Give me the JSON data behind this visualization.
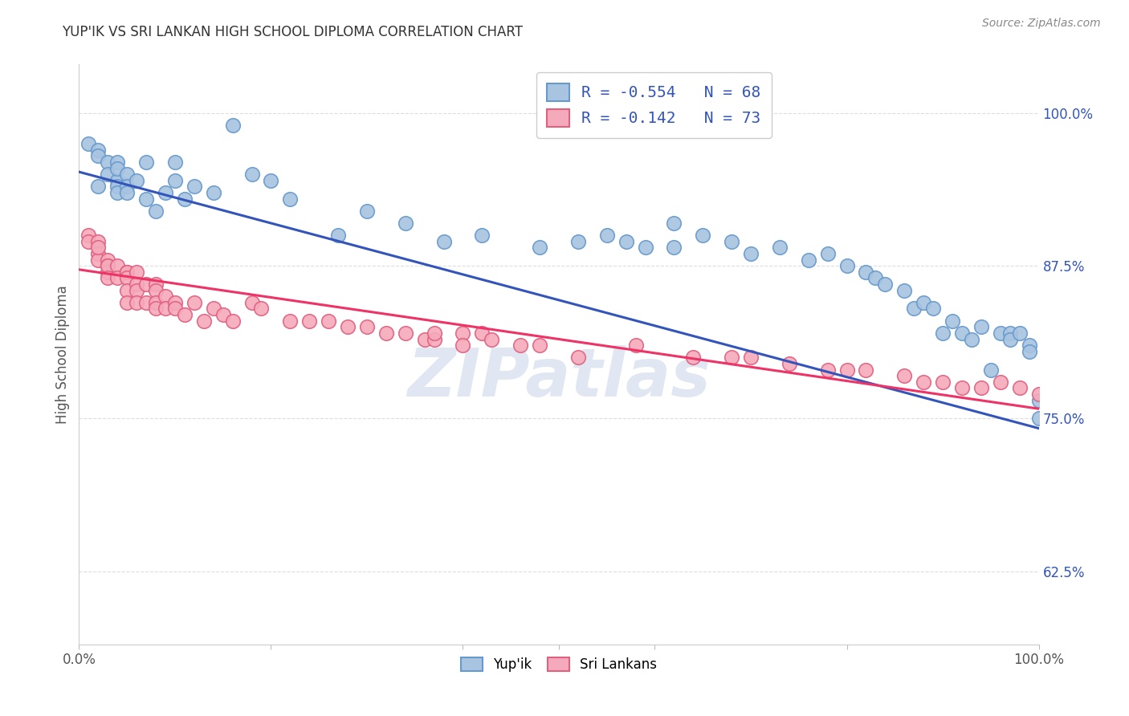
{
  "title": "YUP'IK VS SRI LANKAN HIGH SCHOOL DIPLOMA CORRELATION CHART",
  "source": "Source: ZipAtlas.com",
  "ylabel": "High School Diploma",
  "ytick_labels": [
    "62.5%",
    "75.0%",
    "87.5%",
    "100.0%"
  ],
  "ytick_values": [
    0.625,
    0.75,
    0.875,
    1.0
  ],
  "xlim": [
    0.0,
    1.0
  ],
  "ylim": [
    0.565,
    1.04
  ],
  "blue_color": "#A8C4E0",
  "blue_edge": "#6699CC",
  "pink_color": "#F5AABB",
  "pink_edge": "#E06080",
  "trendline_blue": "#3355BB",
  "trendline_pink": "#EE3366",
  "watermark": "ZIPatlas",
  "blue_R": -0.554,
  "blue_N": 68,
  "pink_R": -0.142,
  "pink_N": 73,
  "blue_trend_y_start": 0.952,
  "blue_trend_y_end": 0.742,
  "pink_trend_y_start": 0.872,
  "pink_trend_y_end": 0.758,
  "background_color": "#FFFFFF",
  "grid_color": "#DDDDDD",
  "blue_scatter_x": [
    0.01,
    0.02,
    0.02,
    0.02,
    0.03,
    0.03,
    0.04,
    0.04,
    0.04,
    0.04,
    0.04,
    0.05,
    0.05,
    0.05,
    0.06,
    0.07,
    0.07,
    0.08,
    0.09,
    0.1,
    0.1,
    0.11,
    0.12,
    0.14,
    0.16,
    0.18,
    0.2,
    0.22,
    0.27,
    0.3,
    0.34,
    0.38,
    0.42,
    0.48,
    0.52,
    0.55,
    0.57,
    0.59,
    0.62,
    0.62,
    0.65,
    0.68,
    0.7,
    0.73,
    0.76,
    0.78,
    0.8,
    0.82,
    0.83,
    0.84,
    0.86,
    0.87,
    0.88,
    0.89,
    0.9,
    0.91,
    0.92,
    0.93,
    0.94,
    0.95,
    0.96,
    0.97,
    0.97,
    0.98,
    0.99,
    0.99,
    1.0,
    1.0
  ],
  "blue_scatter_y": [
    0.975,
    0.97,
    0.965,
    0.94,
    0.96,
    0.95,
    0.945,
    0.96,
    0.955,
    0.94,
    0.935,
    0.95,
    0.94,
    0.935,
    0.945,
    0.96,
    0.93,
    0.92,
    0.935,
    0.945,
    0.96,
    0.93,
    0.94,
    0.935,
    0.99,
    0.95,
    0.945,
    0.93,
    0.9,
    0.92,
    0.91,
    0.895,
    0.9,
    0.89,
    0.895,
    0.9,
    0.895,
    0.89,
    0.89,
    0.91,
    0.9,
    0.895,
    0.885,
    0.89,
    0.88,
    0.885,
    0.875,
    0.87,
    0.865,
    0.86,
    0.855,
    0.84,
    0.845,
    0.84,
    0.82,
    0.83,
    0.82,
    0.815,
    0.825,
    0.79,
    0.82,
    0.82,
    0.815,
    0.82,
    0.81,
    0.805,
    0.75,
    0.765
  ],
  "pink_scatter_x": [
    0.01,
    0.01,
    0.02,
    0.02,
    0.02,
    0.02,
    0.03,
    0.03,
    0.03,
    0.03,
    0.03,
    0.04,
    0.04,
    0.05,
    0.05,
    0.05,
    0.05,
    0.05,
    0.06,
    0.06,
    0.06,
    0.06,
    0.07,
    0.07,
    0.08,
    0.08,
    0.08,
    0.08,
    0.09,
    0.09,
    0.1,
    0.1,
    0.11,
    0.12,
    0.13,
    0.14,
    0.15,
    0.16,
    0.18,
    0.19,
    0.22,
    0.24,
    0.26,
    0.28,
    0.3,
    0.32,
    0.34,
    0.36,
    0.37,
    0.37,
    0.4,
    0.4,
    0.42,
    0.43,
    0.46,
    0.48,
    0.52,
    0.58,
    0.64,
    0.68,
    0.7,
    0.74,
    0.78,
    0.8,
    0.82,
    0.86,
    0.88,
    0.9,
    0.92,
    0.94,
    0.96,
    0.98,
    1.0
  ],
  "pink_scatter_y": [
    0.9,
    0.895,
    0.895,
    0.885,
    0.88,
    0.89,
    0.88,
    0.875,
    0.87,
    0.875,
    0.865,
    0.875,
    0.865,
    0.87,
    0.87,
    0.865,
    0.855,
    0.845,
    0.87,
    0.86,
    0.855,
    0.845,
    0.86,
    0.845,
    0.86,
    0.855,
    0.845,
    0.84,
    0.85,
    0.84,
    0.845,
    0.84,
    0.835,
    0.845,
    0.83,
    0.84,
    0.835,
    0.83,
    0.845,
    0.84,
    0.83,
    0.83,
    0.83,
    0.825,
    0.825,
    0.82,
    0.82,
    0.815,
    0.815,
    0.82,
    0.82,
    0.81,
    0.82,
    0.815,
    0.81,
    0.81,
    0.8,
    0.81,
    0.8,
    0.8,
    0.8,
    0.795,
    0.79,
    0.79,
    0.79,
    0.785,
    0.78,
    0.78,
    0.775,
    0.775,
    0.78,
    0.775,
    0.77
  ]
}
